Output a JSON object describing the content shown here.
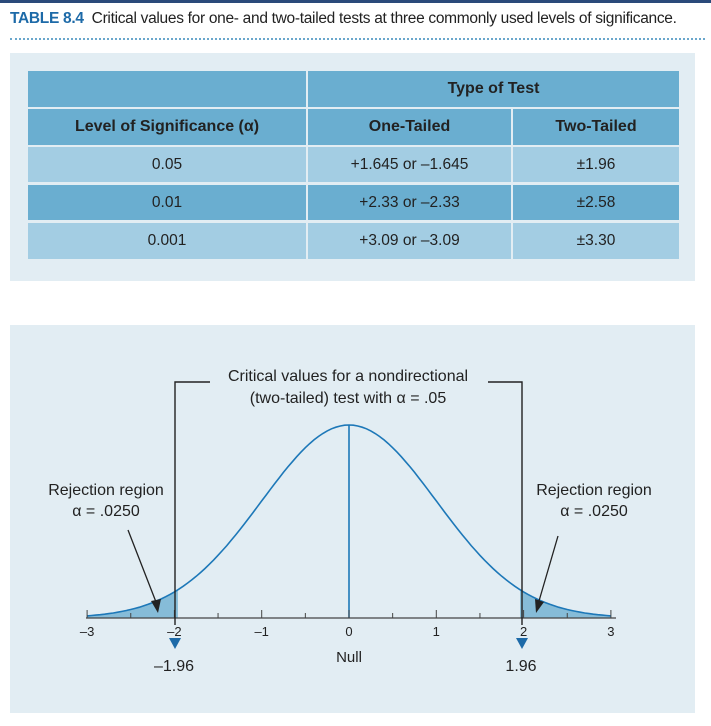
{
  "caption": {
    "label": "TABLE 8.4",
    "text": "Critical values for one- and two-tailed tests at three commonly used levels of significance."
  },
  "table": {
    "group_header": "Type of Test",
    "headers": [
      "Level of Significance (α)",
      "One-Tailed",
      "Two-Tailed"
    ],
    "rows": [
      [
        "0.05",
        "+1.645 or –1.645",
        "±1.96"
      ],
      [
        "0.01",
        "+2.33 or –2.33",
        "±2.58"
      ],
      [
        "0.001",
        "+3.09 or –3.09",
        "±3.30"
      ]
    ]
  },
  "figure": {
    "callout_line1": "Critical values for a nondirectional",
    "callout_line2": "(two-tailed) test with α = .05",
    "left_region_line1": "Rejection region",
    "left_region_line2": "α = .0250",
    "right_region_line1": "Rejection region",
    "right_region_line2": "α = .0250",
    "axis_ticks": [
      "–3",
      "–2",
      "–1",
      "0",
      "1",
      "2",
      "3"
    ],
    "null_label": "Null",
    "left_critical": "–1.96",
    "right_critical": "1.96",
    "curve_color": "#1d78b8",
    "region_fill": "#86bcd8"
  }
}
